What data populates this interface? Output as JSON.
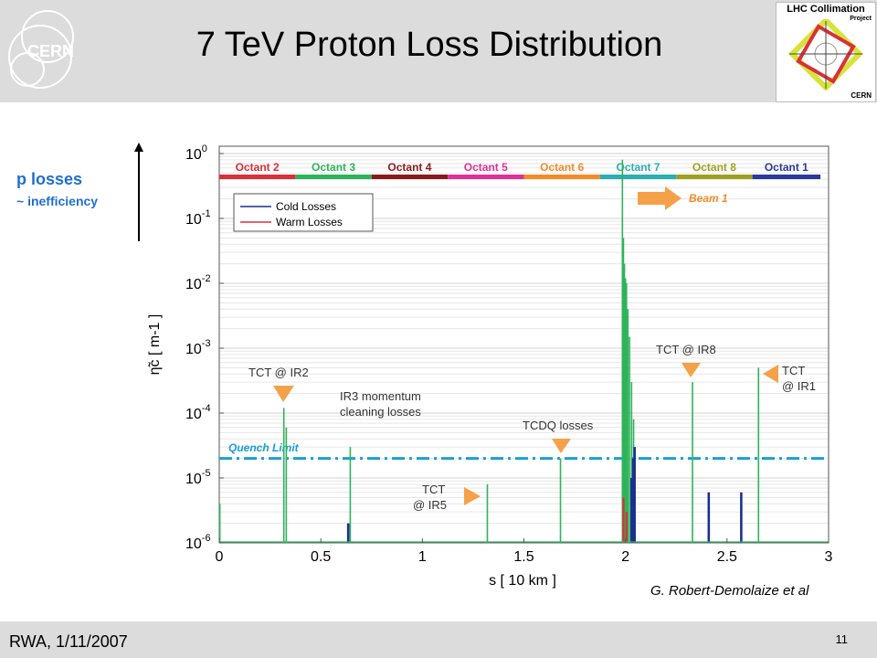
{
  "slide": {
    "title": "7 TeV Proton Loss Distribution",
    "logo_text": "CERN",
    "lhc_logo": {
      "title": "LHC Collimation",
      "project": "Project",
      "org": "CERN"
    },
    "side_label": "p losses",
    "side_sublabel": "~ inefficiency",
    "credit": "G. Robert-Demolaize et al",
    "footer_left": "RWA, 1/11/2007",
    "page_number": "11"
  },
  "colors": {
    "cold": "#1c2f8f",
    "warm": "#d9303a",
    "collimator": "#2fb35a",
    "quench": "#1a9ed6",
    "annotation": "#f4a14a"
  },
  "chart_data": {
    "type": "line",
    "xlabel": "s [ 10 km ]",
    "ylabel": "η̃c [ m-1 ]",
    "xlim": [
      0,
      3
    ],
    "ylim": [
      1e-06,
      1.5
    ],
    "yscale": "log",
    "xticks": [
      "0",
      "0.5",
      "1",
      "1.5",
      "2",
      "2.5",
      "3"
    ],
    "yticks": [
      {
        "value": 1e-06,
        "base": "10",
        "exp": "-6"
      },
      {
        "value": 1e-05,
        "base": "10",
        "exp": "-5"
      },
      {
        "value": 0.0001,
        "base": "10",
        "exp": "-4"
      },
      {
        "value": 0.001,
        "base": "10",
        "exp": "-3"
      },
      {
        "value": 0.01,
        "base": "10",
        "exp": "-2"
      },
      {
        "value": 0.1,
        "base": "10",
        "exp": "-1"
      },
      {
        "value": 1,
        "base": "10",
        "exp": "0"
      }
    ],
    "legend": {
      "position": "top-left",
      "entries": [
        "Cold Losses",
        "Warm Losses"
      ]
    },
    "octants": [
      {
        "label": "Octant  2",
        "x0": 0.0,
        "x1": 0.375,
        "color": "#d9303a"
      },
      {
        "label": "Octant  3",
        "x0": 0.375,
        "x1": 0.75,
        "color": "#2fb35a"
      },
      {
        "label": "Octant  4",
        "x0": 0.75,
        "x1": 1.125,
        "color": "#8a1a1a"
      },
      {
        "label": "Octant  5",
        "x0": 1.125,
        "x1": 1.5,
        "color": "#e0309a"
      },
      {
        "label": "Octant  6",
        "x0": 1.5,
        "x1": 1.875,
        "color": "#f28c28"
      },
      {
        "label": "Octant  7",
        "x0": 1.875,
        "x1": 2.25,
        "color": "#2aaeb0"
      },
      {
        "label": "Octant  8",
        "x0": 2.25,
        "x1": 2.625,
        "color": "#a0a020"
      },
      {
        "label": "Octant  1",
        "x0": 2.625,
        "x1": 2.96,
        "color": "#2a3a9a"
      }
    ],
    "beam_label": "Beam 1",
    "quench_limit": {
      "label": "Quench Limit",
      "value": 2e-05
    },
    "series": [
      {
        "name": "Collimator Losses",
        "peaks": [
          {
            "x": 0.003,
            "y": 4e-06
          },
          {
            "x": 0.318,
            "y": 0.00012
          },
          {
            "x": 0.33,
            "y": 6e-05
          },
          {
            "x": 0.645,
            "y": 3e-05
          },
          {
            "x": 1.32,
            "y": 8e-06
          },
          {
            "x": 1.68,
            "y": 2e-05
          },
          {
            "x": 1.985,
            "y": 0.8
          },
          {
            "x": 1.99,
            "y": 0.05
          },
          {
            "x": 1.995,
            "y": 0.02
          },
          {
            "x": 2.0,
            "y": 0.012
          },
          {
            "x": 2.005,
            "y": 0.01
          },
          {
            "x": 2.012,
            "y": 0.004
          },
          {
            "x": 2.02,
            "y": 0.0015
          },
          {
            "x": 2.03,
            "y": 0.0003
          },
          {
            "x": 2.04,
            "y": 8e-05
          },
          {
            "x": 2.33,
            "y": 0.0003
          },
          {
            "x": 2.655,
            "y": 0.0005
          }
        ]
      },
      {
        "name": "Warm Losses",
        "peaks": [
          {
            "x": 1.99,
            "y": 5e-06
          },
          {
            "x": 2.005,
            "y": 3e-06
          }
        ]
      },
      {
        "name": "Cold Losses",
        "peaks": [
          {
            "x": 0.635,
            "y": 2e-06
          },
          {
            "x": 2.03,
            "y": 1e-05
          },
          {
            "x": 2.038,
            "y": 2e-05
          },
          {
            "x": 2.045,
            "y": 3e-05
          },
          {
            "x": 2.41,
            "y": 6e-06
          },
          {
            "x": 2.57,
            "y": 6e-06
          }
        ]
      }
    ],
    "annotations": [
      {
        "id": "tct-ir2",
        "lines": [
          "TCT @ IR2"
        ]
      },
      {
        "id": "ir3",
        "lines": [
          "IR3 momentum",
          "cleaning losses"
        ]
      },
      {
        "id": "tct-ir5",
        "lines": [
          "TCT",
          "@ IR5"
        ]
      },
      {
        "id": "tcdq",
        "lines": [
          "TCDQ losses"
        ]
      },
      {
        "id": "tct-ir8",
        "lines": [
          "TCT @ IR8"
        ]
      },
      {
        "id": "tct-ir1",
        "lines": [
          "TCT",
          "@ IR1"
        ]
      }
    ]
  }
}
